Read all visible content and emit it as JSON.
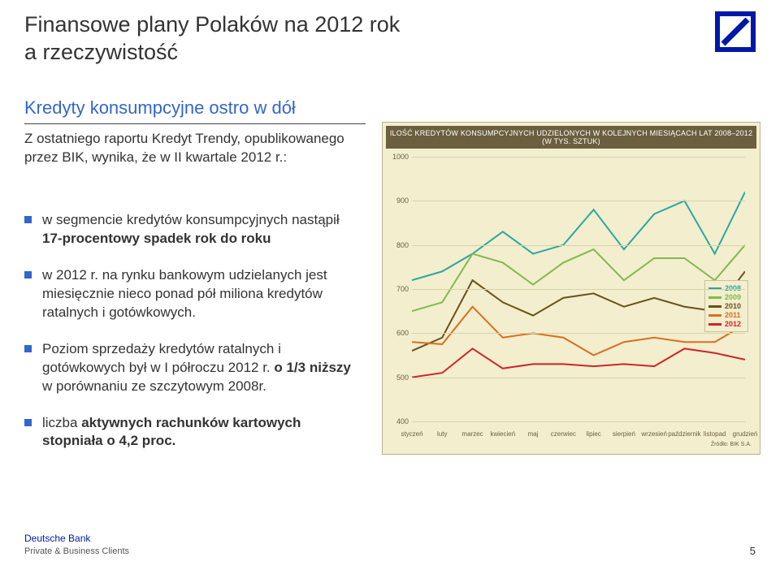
{
  "title_line1": "Finansowe plany Polaków na 2012 rok",
  "title_line2": "a rzeczywistość",
  "subtitle": "Kredyty konsumpcyjne ostro w dół",
  "intro_text": "Z ostatniego raportu Kredyt Trendy, opublikowanego przez BIK, wynika, że w II kwartale 2012 r.:",
  "bullets": {
    "b1_pre": "w segmencie kredytów konsumpcyjnych nastąpił ",
    "b1_bold": "17-procentowy spadek rok do roku",
    "b2": "w 2012 r. na rynku bankowym udzielanych jest miesięcznie nieco ponad pół miliona kredytów ratalnych i gotówkowych.",
    "b3_pre": "Poziom sprzedaży kredytów ratalnych i gotówkowych był w I półroczu 2012 r. ",
    "b3_bold": "o 1/3 niższy",
    "b3_post": " w porównaniu ze szczytowym 2008r.",
    "b4_pre": "liczba ",
    "b4_bold": "aktywnych rachunków kartowych stopniała o 4,2 proc."
  },
  "chart": {
    "type": "line",
    "header": "ILOŚĆ KREDYTÓW KONSUMPCYJNYCH UDZIELONYCH W KOLEJNYCH MIESIĄCACH LAT 2008–2012 (W TYS. SZTUK)",
    "background_color": "#f2eece",
    "header_bg": "#6b5f3f",
    "grid_color": "#d9d3a8",
    "ylim": [
      400,
      1000
    ],
    "yticks": [
      400,
      500,
      600,
      700,
      800,
      900,
      1000
    ],
    "xlabels": [
      "styczeń",
      "luty",
      "marzec",
      "kwiecień",
      "maj",
      "czerwiec",
      "lipiec",
      "sierpień",
      "wrzesień",
      "październik",
      "listopad",
      "grudzień"
    ],
    "series": {
      "2008": {
        "color": "#2aa8a0",
        "values": [
          720,
          740,
          780,
          830,
          780,
          800,
          880,
          790,
          870,
          900,
          780,
          920
        ]
      },
      "2009": {
        "color": "#82b94c",
        "values": [
          650,
          670,
          780,
          760,
          710,
          760,
          790,
          720,
          770,
          770,
          720,
          800
        ]
      },
      "2010": {
        "color": "#6b5118",
        "values": [
          560,
          590,
          720,
          670,
          640,
          680,
          690,
          660,
          680,
          660,
          650,
          740
        ]
      },
      "2011": {
        "color": "#d96f1f",
        "values": [
          580,
          575,
          660,
          590,
          600,
          590,
          550,
          580,
          590,
          580,
          580,
          620
        ]
      },
      "2012": {
        "color": "#d1232a",
        "values": [
          500,
          510,
          565,
          520,
          530,
          530,
          525,
          530,
          525,
          565,
          555,
          540
        ]
      }
    },
    "line_width": 2,
    "legend_years": [
      "2008",
      "2009",
      "2010",
      "2011",
      "2012"
    ],
    "source": "Źródło: BIK S.A."
  },
  "footer": {
    "brand": "Deutsche Bank",
    "sub": "Private & Business Clients"
  },
  "page_number": "5"
}
